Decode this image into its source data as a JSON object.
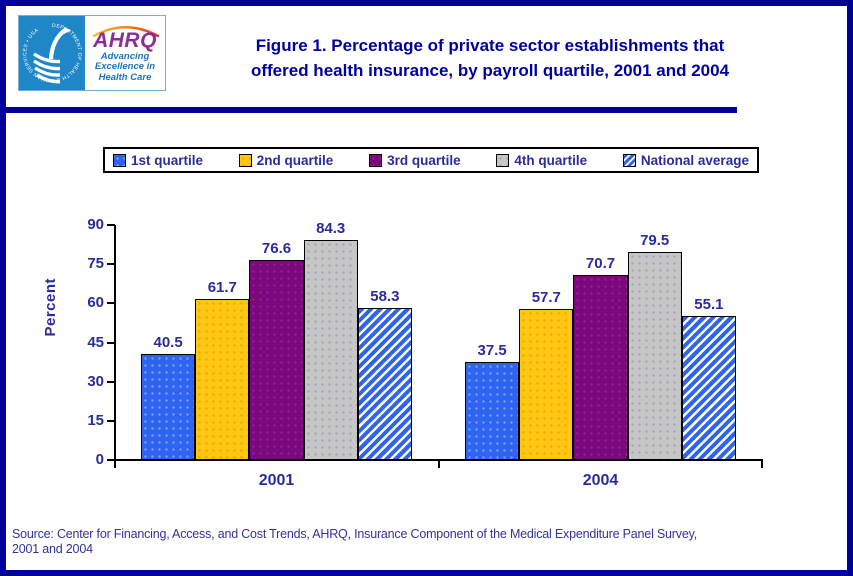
{
  "logo": {
    "hhs_seal_text": "DEPARTMENT OF HEALTH & HUMAN SERVICES • USA",
    "ahrq_text": "AHRQ",
    "tagline_line1": "Advancing",
    "tagline_line2": "Excellence in",
    "tagline_line3": "Health Care"
  },
  "header": {
    "title_line1": "Figure 1. Percentage of private sector establishments that",
    "title_line2": "offered health insurance, by payroll quartile, 2001 and 2004"
  },
  "legend": {
    "items": [
      {
        "label": "1st quartile",
        "color": "#2e64f1",
        "pattern": "solid",
        "dot_color": "rgba(255,255,255,0.40)"
      },
      {
        "label": "2nd quartile",
        "color": "#ffc612",
        "pattern": "solid",
        "dot_color": "rgba(200,130,0,0.45)"
      },
      {
        "label": "3rd quartile",
        "color": "#7d087d",
        "pattern": "solid",
        "dot_color": "rgba(255,255,255,0.12)"
      },
      {
        "label": "4th quartile",
        "color": "#c6c6c6",
        "pattern": "solid",
        "dot_color": "rgba(120,120,155,0.45)"
      },
      {
        "label": "National average",
        "color": "#2e64f1",
        "pattern": "diagonal-stripes",
        "dot_color": ""
      }
    ]
  },
  "chart_data": {
    "type": "bar",
    "title": "Percentage of private sector establishments that offered health insurance, by payroll quartile, 2001 and 2004",
    "categories": [
      "2001",
      "2004"
    ],
    "series": [
      {
        "name": "1st quartile",
        "values": [
          40.5,
          37.5
        ]
      },
      {
        "name": "2nd quartile",
        "values": [
          61.7,
          57.7
        ]
      },
      {
        "name": "3rd quartile",
        "values": [
          76.6,
          70.7
        ]
      },
      {
        "name": "4th quartile",
        "values": [
          84.3,
          79.5
        ]
      },
      {
        "name": "National average",
        "values": [
          58.3,
          55.1
        ]
      }
    ],
    "xlabel": "",
    "ylabel": "Percent",
    "ylim": [
      0,
      90
    ],
    "yticks": [
      0,
      15,
      30,
      45,
      60,
      75,
      90
    ],
    "grid": "off",
    "legend_position": "top",
    "value_labels": "shown above each bar"
  },
  "colors": {
    "frame_navy": "#000099",
    "title_navy": "#0000a0",
    "axis_text_navy": "#2b2b9c",
    "hhs_blue": "#1f86c8",
    "ahrq_purple": "#8e2d96",
    "tagline_blue": "#1b75bc"
  },
  "footer": {
    "source_line1": "Source: Center for Financing, Access, and Cost Trends, AHRQ, Insurance Component of the Medical Expenditure Panel Survey,",
    "source_line2": "2001 and 2004"
  }
}
